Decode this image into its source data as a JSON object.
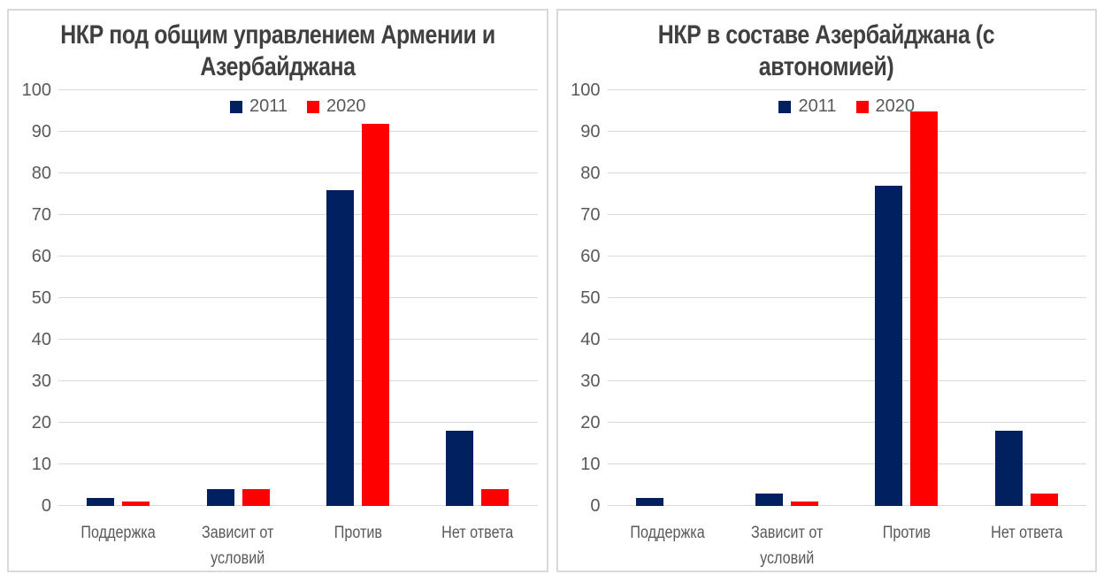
{
  "colors": {
    "series_2011": "#002060",
    "series_2020": "#FF0000",
    "grid": "#D9D9D9",
    "panel_border": "#D9D9D9",
    "axis_text": "#595959",
    "title_text": "#404040",
    "background": "#FFFFFF"
  },
  "chart_data": [
    {
      "type": "bar",
      "title": "НКР под общим управлением Армении и Азербайджана",
      "categories": [
        "Поддержка",
        "Зависит от условий",
        "Против",
        "Нет ответа"
      ],
      "series": [
        {
          "name": "2011",
          "color": "#002060",
          "values": [
            2,
            4,
            76,
            18
          ]
        },
        {
          "name": "2020",
          "color": "#FF0000",
          "values": [
            1,
            4,
            92,
            4
          ]
        }
      ],
      "ylim": [
        0,
        100
      ],
      "ytick_step": 10,
      "grid": true,
      "legend_position": "top-center"
    },
    {
      "type": "bar",
      "title": "НКР в составе Азербайджана (с автономией)",
      "categories": [
        "Поддержка",
        "Зависит от условий",
        "Против",
        "Нет ответа"
      ],
      "series": [
        {
          "name": "2011",
          "color": "#002060",
          "values": [
            2,
            3,
            77,
            18
          ]
        },
        {
          "name": "2020",
          "color": "#FF0000",
          "values": [
            0,
            1,
            95,
            3
          ]
        }
      ],
      "ylim": [
        0,
        100
      ],
      "ytick_step": 10,
      "grid": true,
      "legend_position": "top-center"
    }
  ]
}
